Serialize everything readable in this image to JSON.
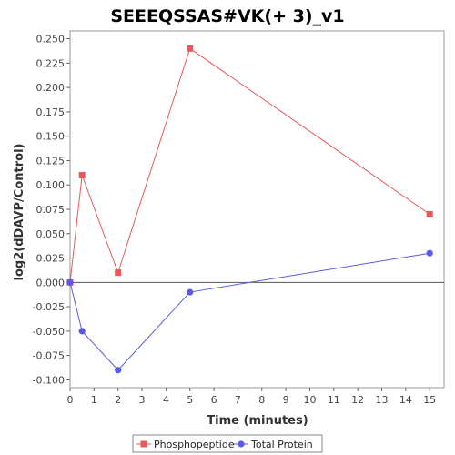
{
  "chart_data": {
    "type": "line",
    "title": "SEEEQSSAS#VK(+ 3)_v1",
    "xlabel": "Time (minutes)",
    "ylabel": "log2(dDAVP/Control)",
    "xlim": [
      0,
      15.6
    ],
    "ylim": [
      -0.108,
      0.258
    ],
    "xticks": [
      0,
      1,
      2,
      3,
      4,
      5,
      6,
      7,
      8,
      9,
      10,
      11,
      12,
      13,
      14,
      15
    ],
    "yticks": [
      -0.1,
      -0.075,
      -0.05,
      -0.025,
      0.0,
      0.025,
      0.05,
      0.075,
      0.1,
      0.125,
      0.15,
      0.175,
      0.2,
      0.225,
      0.25
    ],
    "ytick_labels": [
      "-0.100",
      "-0.075",
      "-0.050",
      "-0.025",
      "0.000",
      "0.025",
      "0.050",
      "0.075",
      "0.100",
      "0.125",
      "0.150",
      "0.175",
      "0.200",
      "0.225",
      "0.250"
    ],
    "grid": false,
    "zero_line": true,
    "legend_position": "bottom",
    "series": [
      {
        "name": "Phosphopeptide",
        "color": "#e8585a",
        "marker": "square",
        "x": [
          0,
          0.5,
          2,
          5,
          15
        ],
        "y": [
          0.0,
          0.11,
          0.01,
          0.24,
          0.07
        ]
      },
      {
        "name": "Total Protein",
        "color": "#5a5ae8",
        "marker": "circle",
        "x": [
          0,
          0.5,
          2,
          5,
          15
        ],
        "y": [
          0.0,
          -0.05,
          -0.09,
          -0.01,
          0.03
        ]
      }
    ]
  }
}
